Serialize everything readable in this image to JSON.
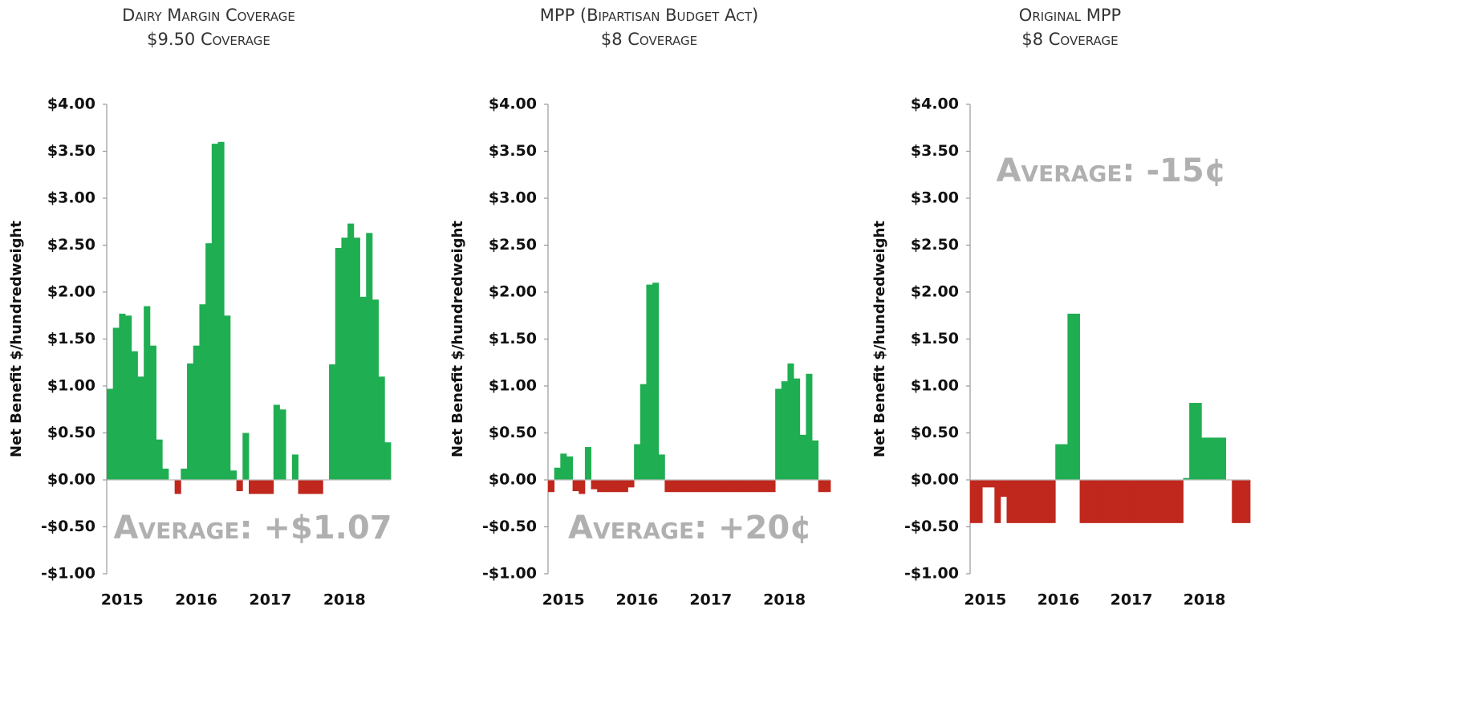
{
  "chart_data": [
    {
      "type": "bar",
      "title": "Dairy Margin Coverage",
      "subtitle": "$9.50 Coverage",
      "ylabel": "Net Benefit $/hundredweight",
      "annotation": "Average: +$1.07",
      "categories": [
        "2015",
        null,
        null,
        null,
        null,
        null,
        null,
        null,
        null,
        null,
        null,
        null,
        "2016",
        null,
        null,
        null,
        null,
        null,
        null,
        null,
        null,
        null,
        null,
        null,
        "2017",
        null,
        null,
        null,
        null,
        null,
        null,
        null,
        null,
        null,
        null,
        null,
        "2018",
        null,
        null,
        null,
        null,
        null,
        null,
        null,
        null,
        null
      ],
      "values": [
        0.97,
        1.62,
        1.77,
        1.75,
        1.37,
        1.1,
        1.85,
        1.43,
        0.43,
        0.12,
        0,
        -0.15,
        0.12,
        1.24,
        1.43,
        1.87,
        2.52,
        3.58,
        3.6,
        1.75,
        0.1,
        -0.12,
        0.5,
        -0.15,
        -0.15,
        -0.15,
        -0.15,
        0.8,
        0.75,
        0,
        0.27,
        -0.15,
        -0.15,
        -0.15,
        -0.15,
        0,
        1.23,
        2.47,
        2.58,
        2.73,
        2.58,
        1.95,
        2.63,
        1.92,
        1.1,
        0.4
      ],
      "positive_color": "#1fae52",
      "negative_color": "#c0271d",
      "ylim": [
        -1,
        4
      ],
      "yticks": [
        {
          "value": 4,
          "label": "$4.00"
        },
        {
          "value": 3.5,
          "label": "$3.50"
        },
        {
          "value": 3,
          "label": "$3.00"
        },
        {
          "value": 2.5,
          "label": "$2.50"
        },
        {
          "value": 2,
          "label": "$2.00"
        },
        {
          "value": 1.5,
          "label": "$1.50"
        },
        {
          "value": 1,
          "label": "$1.00"
        },
        {
          "value": 0.5,
          "label": "$0.50"
        },
        {
          "value": 0,
          "label": "$0.00"
        },
        {
          "value": -0.5,
          "label": "-$0.50"
        },
        {
          "value": -1,
          "label": "-$1.00"
        }
      ]
    },
    {
      "type": "bar",
      "title": "MPP (Bipartisan Budget Act)",
      "subtitle": "$8 Coverage",
      "ylabel": "Net Benefit $/hundredweight",
      "annotation": "Average: +20¢",
      "categories": [
        "2015",
        null,
        null,
        null,
        null,
        null,
        null,
        null,
        null,
        null,
        null,
        null,
        "2016",
        null,
        null,
        null,
        null,
        null,
        null,
        null,
        null,
        null,
        null,
        null,
        "2017",
        null,
        null,
        null,
        null,
        null,
        null,
        null,
        null,
        null,
        null,
        null,
        "2018",
        null,
        null,
        null,
        null,
        null,
        null,
        null,
        null,
        null
      ],
      "values": [
        -0.13,
        0.13,
        0.28,
        0.25,
        -0.12,
        -0.15,
        0.35,
        -0.1,
        -0.13,
        -0.13,
        -0.13,
        -0.13,
        -0.13,
        -0.08,
        0.38,
        1.02,
        2.08,
        2.1,
        0.27,
        -0.13,
        -0.13,
        -0.13,
        -0.13,
        -0.13,
        -0.13,
        -0.13,
        -0.13,
        -0.13,
        -0.13,
        -0.13,
        -0.13,
        -0.13,
        -0.13,
        -0.13,
        -0.13,
        -0.13,
        -0.13,
        0.97,
        1.05,
        1.24,
        1.08,
        0.48,
        1.13,
        0.42,
        -0.13,
        -0.13
      ],
      "positive_color": "#1fae52",
      "negative_color": "#c0271d",
      "ylim": [
        -1,
        4
      ],
      "yticks": [
        {
          "value": 4,
          "label": "$4.00"
        },
        {
          "value": 3.5,
          "label": "$3.50"
        },
        {
          "value": 3,
          "label": "$3.00"
        },
        {
          "value": 2.5,
          "label": "$2.50"
        },
        {
          "value": 2,
          "label": "$2.00"
        },
        {
          "value": 1.5,
          "label": "$1.50"
        },
        {
          "value": 1,
          "label": "$1.00"
        },
        {
          "value": 0.5,
          "label": "$0.50"
        },
        {
          "value": 0,
          "label": "$0.00"
        },
        {
          "value": -0.5,
          "label": "-$0.50"
        },
        {
          "value": -1,
          "label": "-$1.00"
        }
      ]
    },
    {
      "type": "bar",
      "title": "Original MPP",
      "subtitle": "$8 Coverage",
      "ylabel": "Net Benefit $/hundredweight",
      "annotation": "Average: -15¢",
      "categories": [
        "2015",
        null,
        null,
        null,
        null,
        null,
        null,
        null,
        null,
        null,
        null,
        null,
        "2016",
        null,
        null,
        null,
        null,
        null,
        null,
        null,
        null,
        null,
        null,
        null,
        "2017",
        null,
        null,
        null,
        null,
        null,
        null,
        null,
        null,
        null,
        null,
        null,
        "2018",
        null,
        null,
        null,
        null,
        null,
        null,
        null,
        null,
        null
      ],
      "values": [
        -0.46,
        -0.46,
        -0.08,
        -0.08,
        -0.46,
        -0.18,
        -0.46,
        -0.46,
        -0.46,
        -0.46,
        -0.46,
        -0.46,
        -0.46,
        -0.46,
        0.38,
        0.38,
        1.77,
        1.77,
        -0.46,
        -0.46,
        -0.46,
        -0.46,
        -0.46,
        -0.46,
        -0.46,
        -0.46,
        -0.46,
        -0.46,
        -0.46,
        -0.46,
        -0.46,
        -0.46,
        -0.46,
        -0.46,
        -0.46,
        0.02,
        0.82,
        0.82,
        0.45,
        0.45,
        0.45,
        0.45,
        0,
        -0.46,
        -0.46,
        -0.46
      ],
      "positive_color": "#1fae52",
      "negative_color": "#c0271d",
      "ylim": [
        -1,
        4
      ],
      "yticks": [
        {
          "value": 4,
          "label": "$4.00"
        },
        {
          "value": 3.5,
          "label": "$3.50"
        },
        {
          "value": 3,
          "label": "$3.00"
        },
        {
          "value": 2.5,
          "label": "$2.50"
        },
        {
          "value": 2,
          "label": "$2.00"
        },
        {
          "value": 1.5,
          "label": "$1.50"
        },
        {
          "value": 1,
          "label": "$1.00"
        },
        {
          "value": 0.5,
          "label": "$0.50"
        },
        {
          "value": 0,
          "label": "$0.00"
        },
        {
          "value": -0.5,
          "label": "-$0.50"
        },
        {
          "value": -1,
          "label": "-$1.00"
        }
      ]
    }
  ]
}
